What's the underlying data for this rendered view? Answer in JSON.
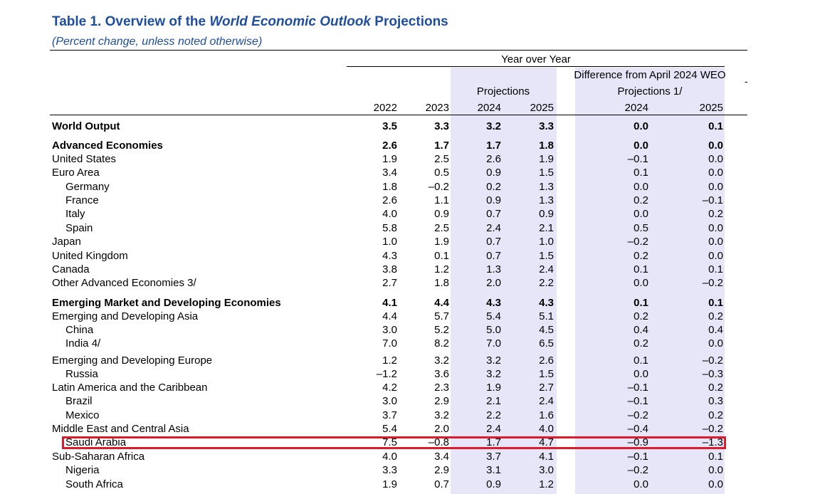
{
  "title": {
    "prefix": "Table 1. Overview of the",
    "italic": "World Economic Outlook",
    "suffix": "Projections"
  },
  "subtitle": "(Percent change, unless noted otherwise)",
  "headers": {
    "year_over_year": "Year over Year",
    "difference": "Difference from April 2024 WEO",
    "projections_diff": "Projections 1/",
    "projections": "Projections",
    "years": [
      "2022",
      "2023",
      "2024",
      "2025",
      "2024",
      "2025"
    ],
    "stray_mark": "-"
  },
  "rows": [
    {
      "label": "World Output",
      "values": [
        "3.5",
        "3.3",
        "3.2",
        "3.3",
        "0.0",
        "0.1"
      ]
    },
    {
      "label": "Advanced Economies",
      "values": [
        "2.6",
        "1.7",
        "1.7",
        "1.8",
        "0.0",
        "0.0"
      ]
    },
    {
      "label": "United States",
      "values": [
        "1.9",
        "2.5",
        "2.6",
        "1.9",
        "–0.1",
        "0.0"
      ]
    },
    {
      "label": "Euro Area",
      "values": [
        "3.4",
        "0.5",
        "0.9",
        "1.5",
        "0.1",
        "0.0"
      ]
    },
    {
      "label": "Germany",
      "values": [
        "1.8",
        "–0.2",
        "0.2",
        "1.3",
        "0.0",
        "0.0"
      ]
    },
    {
      "label": "France",
      "values": [
        "2.6",
        "1.1",
        "0.9",
        "1.3",
        "0.2",
        "–0.1"
      ]
    },
    {
      "label": "Italy",
      "values": [
        "4.0",
        "0.9",
        "0.7",
        "0.9",
        "0.0",
        "0.2"
      ]
    },
    {
      "label": "Spain",
      "values": [
        "5.8",
        "2.5",
        "2.4",
        "2.1",
        "0.5",
        "0.0"
      ]
    },
    {
      "label": "Japan",
      "values": [
        "1.0",
        "1.9",
        "0.7",
        "1.0",
        "–0.2",
        "0.0"
      ]
    },
    {
      "label": "United Kingdom",
      "values": [
        "4.3",
        "0.1",
        "0.7",
        "1.5",
        "0.2",
        "0.0"
      ]
    },
    {
      "label": "Canada",
      "values": [
        "3.8",
        "1.2",
        "1.3",
        "2.4",
        "0.1",
        "0.1"
      ]
    },
    {
      "label": "Other Advanced Economies 3/",
      "values": [
        "2.7",
        "1.8",
        "2.0",
        "2.2",
        "0.0",
        "–0.2"
      ]
    },
    {
      "label": "Emerging Market and Developing Economies",
      "values": [
        "4.1",
        "4.4",
        "4.3",
        "4.3",
        "0.1",
        "0.1"
      ]
    },
    {
      "label": "Emerging and Developing Asia",
      "values": [
        "4.4",
        "5.7",
        "5.4",
        "5.1",
        "0.2",
        "0.2"
      ]
    },
    {
      "label": "China",
      "values": [
        "3.0",
        "5.2",
        "5.0",
        "4.5",
        "0.4",
        "0.4"
      ]
    },
    {
      "label": "India 4/",
      "values": [
        "7.0",
        "8.2",
        "7.0",
        "6.5",
        "0.2",
        "0.0"
      ]
    },
    {
      "label": "Emerging and Developing Europe",
      "values": [
        "1.2",
        "3.2",
        "3.2",
        "2.6",
        "0.1",
        "–0.2"
      ]
    },
    {
      "label": "Russia",
      "values": [
        "–1.2",
        "3.6",
        "3.2",
        "1.5",
        "0.0",
        "–0.3"
      ]
    },
    {
      "label": "Latin America and the Caribbean",
      "values": [
        "4.2",
        "2.3",
        "1.9",
        "2.7",
        "–0.1",
        "0.2"
      ]
    },
    {
      "label": "Brazil",
      "values": [
        "3.0",
        "2.9",
        "2.1",
        "2.4",
        "–0.1",
        "0.3"
      ]
    },
    {
      "label": "Mexico",
      "values": [
        "3.7",
        "3.2",
        "2.2",
        "1.6",
        "–0.2",
        "0.2"
      ]
    },
    {
      "label": "Middle East and Central Asia",
      "values": [
        "5.4",
        "2.0",
        "2.4",
        "4.0",
        "–0.4",
        "–0.2"
      ]
    },
    {
      "label": "Saudi Arabia",
      "values": [
        "7.5",
        "–0.8",
        "1.7",
        "4.7",
        "–0.9",
        "–1.3"
      ]
    },
    {
      "label": "Sub-Saharan Africa",
      "values": [
        "4.0",
        "3.4",
        "3.7",
        "4.1",
        "–0.1",
        "0.1"
      ]
    },
    {
      "label": "Nigeria",
      "values": [
        "3.3",
        "2.9",
        "3.1",
        "3.0",
        "–0.2",
        "0.0"
      ]
    },
    {
      "label": "South Africa",
      "values": [
        "1.9",
        "0.7",
        "0.9",
        "1.2",
        "0.0",
        "0.0"
      ]
    }
  ],
  "colors": {
    "title": "#1f4e9e",
    "shade": "#e6e6f8",
    "highlight_border": "#e11a2b"
  }
}
